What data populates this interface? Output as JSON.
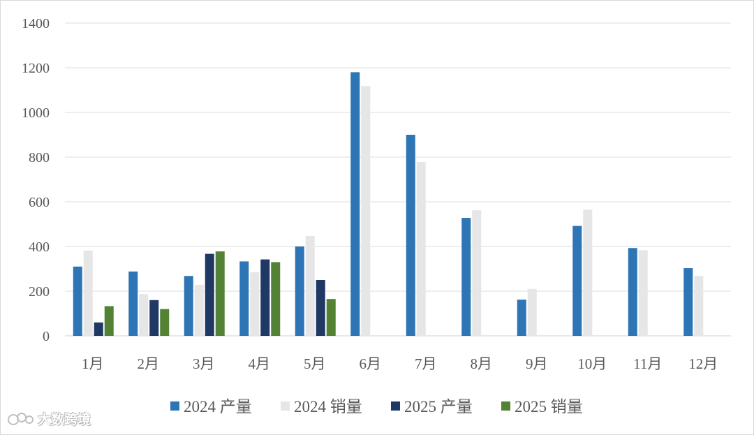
{
  "chart_data": {
    "type": "bar",
    "title": "",
    "xlabel": "",
    "ylabel": "",
    "ylim": [
      0,
      1400
    ],
    "yticks": [
      0,
      200,
      400,
      600,
      800,
      1000,
      1200,
      1400
    ],
    "grid": true,
    "legend_position": "bottom",
    "categories": [
      "1月",
      "2月",
      "3月",
      "4月",
      "5月",
      "6月",
      "7月",
      "8月",
      "9月",
      "10月",
      "11月",
      "12月"
    ],
    "series": [
      {
        "name": "2024 产量",
        "color": "#2e75b6",
        "values": [
          310,
          288,
          268,
          333,
          400,
          1180,
          900,
          528,
          162,
          492,
          393,
          303
        ]
      },
      {
        "name": "2024 销量",
        "color": "#e7e6e6",
        "values": [
          382,
          187,
          228,
          285,
          447,
          1118,
          778,
          562,
          210,
          565,
          383,
          268
        ]
      },
      {
        "name": "2025 产量",
        "color": "#1f3864",
        "values": [
          60,
          160,
          367,
          342,
          250,
          null,
          null,
          null,
          null,
          null,
          null,
          null
        ]
      },
      {
        "name": "2025 销量",
        "color": "#548235",
        "values": [
          133,
          120,
          378,
          330,
          165,
          null,
          null,
          null,
          null,
          null,
          null,
          null
        ]
      }
    ]
  },
  "watermark": {
    "text": "大数跨境",
    "icon": "logo-icon"
  }
}
